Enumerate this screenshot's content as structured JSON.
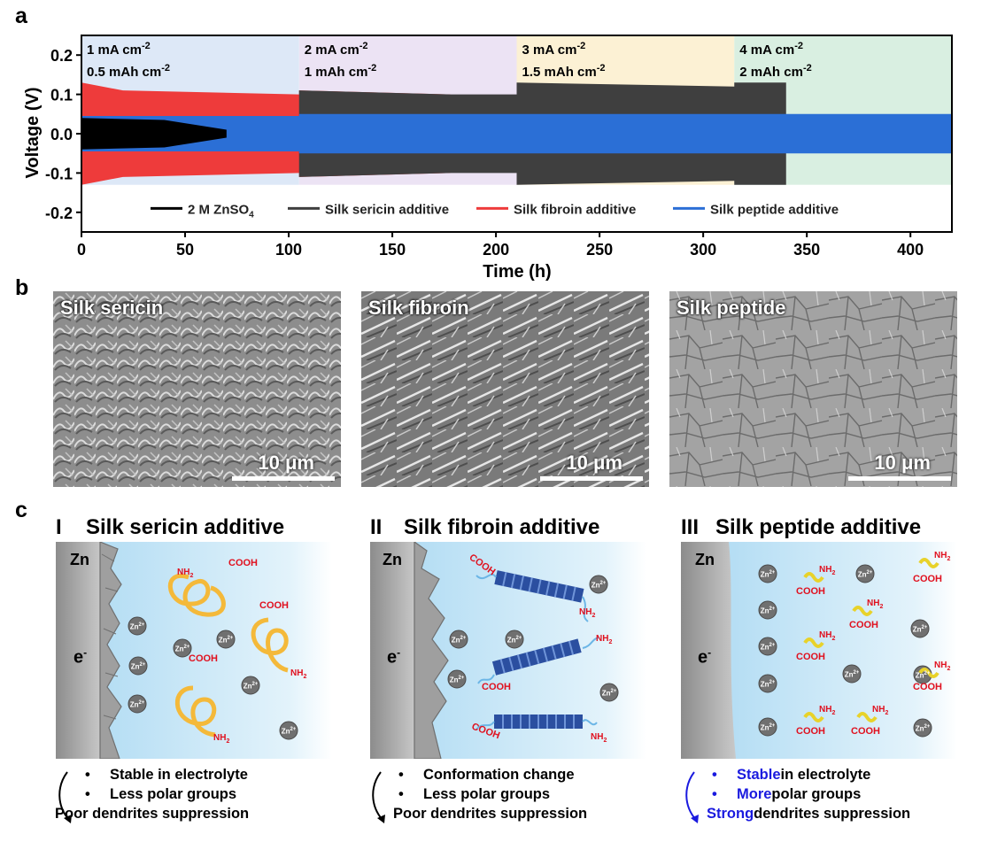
{
  "panel_labels": {
    "a": "a",
    "b": "b",
    "c": "c"
  },
  "chart_data": {
    "type": "line",
    "ylabel": "Voltage (V)",
    "xlabel": "Time (h)",
    "xlim": [
      0,
      420
    ],
    "ylim": [
      -0.25,
      0.25
    ],
    "xticks": [
      0,
      50,
      100,
      150,
      200,
      250,
      300,
      350,
      400
    ],
    "yticks": [
      0.2,
      0.1,
      0.0,
      -0.1,
      -0.2
    ],
    "ytick_labels": [
      "0.2",
      "0.1",
      "0.0",
      "-0.1",
      "-0.2"
    ],
    "rate_regions": [
      {
        "start": 0,
        "end": 105,
        "line1": "1 mA cm",
        "line1_sup": "-2",
        "line2": "0.5 mAh cm",
        "line2_sup": "-2",
        "color": "#dde8f7"
      },
      {
        "start": 105,
        "end": 210,
        "line1": "2 mA cm",
        "line1_sup": "-2",
        "line2": "1 mAh cm",
        "line2_sup": "-2",
        "color": "#ece3f4"
      },
      {
        "start": 210,
        "end": 315,
        "line1": "3 mA cm",
        "line1_sup": "-2",
        "line2": "1.5 mAh cm",
        "line2_sup": "-2",
        "color": "#fcf1d4"
      },
      {
        "start": 315,
        "end": 420,
        "line1": "4 mA cm",
        "line1_sup": "-2",
        "line2": "2 mAh cm",
        "line2_sup": "-2",
        "color": "#d9efe1"
      }
    ],
    "series": [
      {
        "name": "2 M ZnSO",
        "name_sub": "4",
        "color": "#000000",
        "envelope": [
          [
            0,
            0.04
          ],
          [
            40,
            0.035
          ],
          [
            70,
            0.01
          ]
        ]
      },
      {
        "name": "Silk sericin additive",
        "color": "#3f3f3f",
        "envelope": [
          [
            105,
            0.11
          ],
          [
            178,
            0.1
          ],
          [
            210,
            0.1
          ],
          [
            210,
            0.13
          ],
          [
            315,
            0.12
          ],
          [
            315,
            0.13
          ],
          [
            340,
            0.13
          ]
        ]
      },
      {
        "name": "Silk fibroin additive",
        "color": "#ee3b3b",
        "envelope": [
          [
            0,
            0.13
          ],
          [
            20,
            0.11
          ],
          [
            105,
            0.1
          ],
          [
            105,
            0.11
          ],
          [
            178,
            0.1
          ]
        ]
      },
      {
        "name": "Silk peptide additive",
        "color": "#2b6fd6",
        "envelope": [
          [
            0,
            0.045
          ],
          [
            105,
            0.045
          ],
          [
            105,
            0.05
          ],
          [
            210,
            0.05
          ],
          [
            315,
            0.05
          ],
          [
            420,
            0.05
          ]
        ]
      }
    ]
  },
  "sem_images": [
    {
      "title": "Silk sericin",
      "scale": "10 μm"
    },
    {
      "title": "Silk fibroin",
      "scale": "10 μm"
    },
    {
      "title": "Silk peptide",
      "scale": "10 μm"
    }
  ],
  "schemes": [
    {
      "roman": "I",
      "title": "Silk sericin additive",
      "bullets": [
        {
          "text": "Stable in electrolyte"
        },
        {
          "text": "Less polar groups"
        }
      ],
      "conclusion": "Poor dendrites suppression"
    },
    {
      "roman": "II",
      "title": "Silk fibroin additive",
      "bullets": [
        {
          "text": "Conformation change"
        },
        {
          "text": "Less polar groups"
        }
      ],
      "conclusion": "Poor dendrites suppression"
    },
    {
      "roman": "III",
      "title": "Silk peptide additive",
      "bullets": [
        {
          "hl": "Stable",
          "text": " in electrolyte"
        },
        {
          "hl": "More",
          "text": " polar groups"
        }
      ],
      "conclusion_hl": "Strong",
      "conclusion": " dendrites suppression"
    }
  ],
  "scheme_labels": {
    "zn": "Zn",
    "electron": "e",
    "electron_sup": "-",
    "ion": "Zn",
    "ion_sup": "2+",
    "cooh": "COOH",
    "nh2": "NH",
    "nh2_sub": "2",
    "bullet": "•"
  },
  "colors": {
    "sericin": "#f4b93a",
    "fibroin_block": "#2b4fa0",
    "cooh": "#e0101e",
    "highlight": "#1a1adf"
  }
}
